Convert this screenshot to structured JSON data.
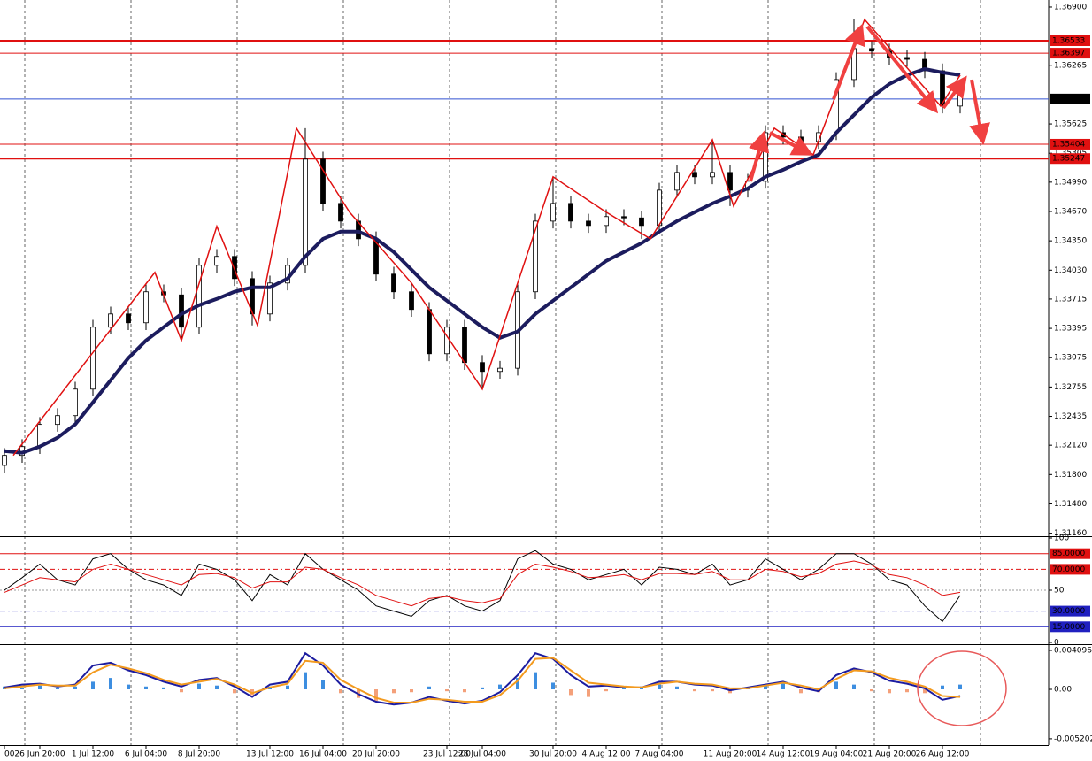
{
  "chart_data": [
    {
      "type": "candlestick",
      "categories": [
        "00",
        null,
        "26 Jun 20:00",
        null,
        null,
        "1 Jul 12:00",
        null,
        null,
        "6 Jul 04:00",
        null,
        null,
        "8 Jul 20:00",
        null,
        null,
        null,
        "13 Jul 12:00",
        null,
        null,
        "16 Jul 04:00",
        null,
        null,
        "20 Jul 20:00",
        null,
        null,
        null,
        "23 Jul 12:00",
        null,
        "28 Jul 04:00",
        null,
        null,
        null,
        "30 Jul 20:00",
        null,
        null,
        "4 Aug 12:00",
        null,
        null,
        "7 Aug 04:00",
        null,
        null,
        null,
        "11 Aug 20:00",
        null,
        null,
        "14 Aug 12:00",
        null,
        null,
        "19 Aug 04:00",
        null,
        null,
        "21 Aug 20:00",
        null,
        null,
        "26 Aug 12:00",
        null
      ],
      "open": [
        1.319,
        1.32009,
        1.32105,
        1.32347,
        1.32443,
        1.32732,
        1.33408,
        1.33552,
        1.33456,
        1.33794,
        1.3376,
        1.33408,
        1.34083,
        1.3418,
        1.33938,
        1.33552,
        1.3389,
        1.34083,
        1.35241,
        1.34758,
        1.34565,
        1.34372,
        1.33987,
        1.33794,
        1.33601,
        1.33118,
        1.33408,
        1.33022,
        1.32925,
        1.3296,
        1.33794,
        1.34565,
        1.34758,
        1.34565,
        1.34517,
        1.34614,
        1.346,
        1.34517,
        1.34903,
        1.35096,
        1.35048,
        1.35096,
        1.34903,
        1.35,
        1.3553,
        1.35482,
        1.35434,
        1.3553,
        1.36109,
        1.36447,
        1.3642,
        1.3635,
        1.3633,
        1.36205,
        1.3582
      ],
      "high": [
        1.32089,
        1.32185,
        1.32427,
        1.32523,
        1.32812,
        1.33488,
        1.33632,
        1.33632,
        1.33874,
        1.33874,
        1.3384,
        1.34163,
        1.3426,
        1.3426,
        1.34018,
        1.3397,
        1.34163,
        1.35578,
        1.35321,
        1.34838,
        1.34645,
        1.34452,
        1.34067,
        1.33874,
        1.33681,
        1.33488,
        1.33488,
        1.33102,
        1.3304,
        1.33874,
        1.34645,
        1.35048,
        1.34838,
        1.34645,
        1.34694,
        1.34694,
        1.3468,
        1.34983,
        1.35176,
        1.35176,
        1.35453,
        1.35176,
        1.3508,
        1.3561,
        1.3561,
        1.35562,
        1.3561,
        1.36189,
        1.36765,
        1.36527,
        1.365,
        1.3643,
        1.3641,
        1.36285,
        1.36044
      ],
      "low": [
        1.3182,
        1.31929,
        1.32025,
        1.32267,
        1.32363,
        1.32652,
        1.33328,
        1.33376,
        1.33376,
        1.3368,
        1.33263,
        1.33328,
        1.34003,
        1.33858,
        1.33427,
        1.33472,
        1.3381,
        1.34003,
        1.34678,
        1.34485,
        1.34292,
        1.33907,
        1.33714,
        1.33521,
        1.33038,
        1.33038,
        1.32942,
        1.32732,
        1.32845,
        1.3288,
        1.33714,
        1.34485,
        1.34485,
        1.34437,
        1.34437,
        1.3452,
        1.34372,
        1.34437,
        1.34823,
        1.34968,
        1.34968,
        1.34729,
        1.34823,
        1.3492,
        1.35402,
        1.35289,
        1.35354,
        1.3545,
        1.36029,
        1.3634,
        1.3627,
        1.3625,
        1.36125,
        1.3574,
        1.3574
      ],
      "close": [
        1.32009,
        1.32105,
        1.32347,
        1.32443,
        1.32732,
        1.33408,
        1.33552,
        1.33456,
        1.33794,
        1.3376,
        1.33408,
        1.34083,
        1.3418,
        1.33938,
        1.33552,
        1.3389,
        1.34083,
        1.35241,
        1.34758,
        1.34565,
        1.34372,
        1.33987,
        1.33794,
        1.33601,
        1.33118,
        1.33408,
        1.33022,
        1.32925,
        1.3296,
        1.33794,
        1.34565,
        1.34758,
        1.34565,
        1.34517,
        1.34614,
        1.346,
        1.34517,
        1.34903,
        1.35096,
        1.35048,
        1.35096,
        1.34903,
        1.35,
        1.3553,
        1.35482,
        1.35434,
        1.3553,
        1.36109,
        1.36447,
        1.3642,
        1.3635,
        1.3633,
        1.36205,
        1.3582,
        1.35964
      ],
      "ma": {
        "color": "#1c1c5e",
        "values": [
          1.32057,
          1.32038,
          1.32105,
          1.32202,
          1.32347,
          1.32588,
          1.32829,
          1.3307,
          1.33263,
          1.33408,
          1.33552,
          1.33649,
          1.33716,
          1.33794,
          1.33842,
          1.33842,
          1.33938,
          1.3418,
          1.34372,
          1.3445,
          1.3445,
          1.34372,
          1.34228,
          1.34035,
          1.33842,
          1.33697,
          1.33552,
          1.33408,
          1.33292,
          1.3336,
          1.33552,
          1.33697,
          1.33842,
          1.33987,
          1.34131,
          1.34228,
          1.34324,
          1.3445,
          1.34565,
          1.34662,
          1.34758,
          1.34836,
          1.34922,
          1.35048,
          1.35125,
          1.35212,
          1.35289,
          1.3553,
          1.35723,
          1.35916,
          1.36061,
          1.36157,
          1.36225,
          1.36186,
          1.36157
        ]
      },
      "zigzag": {
        "color": "#e01010",
        "x": [
          0.5,
          8.5,
          10,
          12,
          14.3,
          16.5,
          19.5,
          23,
          27,
          31,
          34,
          36.5,
          40,
          41.2,
          43.5,
          45.7,
          48.6,
          52.9,
          54
        ],
        "values": [
          1.32009,
          1.34006,
          1.33263,
          1.34508,
          1.33427,
          1.35578,
          1.34662,
          1.3389,
          1.32732,
          1.35048,
          1.34662,
          1.34372,
          1.35453,
          1.34729,
          1.35578,
          1.35289,
          1.36765,
          1.3582,
          1.36157
        ]
      },
      "ylim": [
        1.31137,
        1.36977
      ],
      "yticks": [
        {
          "value": 1.369,
          "label": "1.36900"
        },
        {
          "value": 1.36265,
          "label": "1.36265"
        },
        {
          "value": 1.35625,
          "label": "1.35625"
        },
        {
          "value": 1.35305,
          "label": "1.35305"
        },
        {
          "value": 1.3499,
          "label": "1.34990"
        },
        {
          "value": 1.3467,
          "label": "1.34670"
        },
        {
          "value": 1.3435,
          "label": "1.34350"
        },
        {
          "value": 1.3403,
          "label": "1.34030"
        },
        {
          "value": 1.33715,
          "label": "1.33715"
        },
        {
          "value": 1.33395,
          "label": "1.33395"
        },
        {
          "value": 1.33075,
          "label": "1.33075"
        },
        {
          "value": 1.32755,
          "label": "1.32755"
        },
        {
          "value": 1.32435,
          "label": "1.32435"
        },
        {
          "value": 1.3212,
          "label": "1.32120"
        },
        {
          "value": 1.318,
          "label": "1.31800"
        },
        {
          "value": 1.3148,
          "label": "1.31480"
        },
        {
          "value": 1.3116,
          "label": "1.31160"
        }
      ],
      "hlines": [
        {
          "value": 1.36533,
          "label": "1.36533",
          "color": "#e01010",
          "box_color": "#e01010",
          "width": 2
        },
        {
          "value": 1.36397,
          "label": "1.36397",
          "color": "#e01010",
          "box_color": "#e01010",
          "width": 1
        },
        {
          "value": 1.35897,
          "label": "1.35897",
          "color": "#3050d0",
          "box_color": "#000000",
          "width": 1
        },
        {
          "value": 1.35404,
          "label": "1.35404",
          "color": "#e01010",
          "box_color": "#e01010",
          "width": 1
        },
        {
          "value": 1.35247,
          "label": "1.35247",
          "color": "#e01010",
          "box_color": "#e01010",
          "width": 2
        }
      ]
    },
    {
      "type": "line",
      "series": [
        {
          "color": "#000000",
          "values": [
            50,
            62,
            75,
            60,
            55,
            80,
            85,
            70,
            60,
            55,
            45,
            75,
            70,
            60,
            40,
            65,
            55,
            85,
            70,
            60,
            50,
            35,
            30,
            25,
            40,
            45,
            35,
            30,
            40,
            80,
            88,
            75,
            70,
            60,
            65,
            70,
            55,
            72,
            70,
            65,
            75,
            55,
            60,
            80,
            70,
            60,
            70,
            85,
            85,
            75,
            60,
            55,
            35,
            20,
            45
          ]
        },
        {
          "color": "#e01010",
          "values": [
            48,
            55,
            62,
            60,
            58,
            70,
            75,
            70,
            65,
            60,
            55,
            65,
            66,
            62,
            52,
            58,
            58,
            72,
            70,
            62,
            55,
            45,
            40,
            35,
            42,
            44,
            40,
            38,
            42,
            65,
            75,
            72,
            68,
            62,
            63,
            65,
            60,
            66,
            66,
            65,
            68,
            60,
            60,
            70,
            68,
            63,
            66,
            75,
            78,
            74,
            65,
            62,
            55,
            45,
            48
          ]
        }
      ],
      "ylim": [
        0,
        100
      ],
      "yticks": [
        0,
        50,
        100
      ],
      "hlines": [
        {
          "value": 85,
          "label": "85.0000",
          "color": "#e01010",
          "dash": "",
          "boxed": true
        },
        {
          "value": 70,
          "label": "70.0000",
          "color": "#e01010",
          "dash": "6 3 2 3",
          "boxed": true
        },
        {
          "value": 50,
          "color": "#999999",
          "dash": "2 2",
          "boxed": false
        },
        {
          "value": 30,
          "label": "30.0000",
          "color": "#2020c0",
          "dash": "6 3 2 3",
          "boxed": true
        },
        {
          "value": 15,
          "label": "15.0000",
          "color": "#2020c0",
          "dash": "",
          "boxed": true
        }
      ]
    },
    {
      "type": "macd",
      "histogram": {
        "up_color": "#3d8ee0",
        "down_color": "#f4a07a",
        "values": [
          0.0003,
          0.0002,
          0.0004,
          0.0002,
          0.0003,
          0.0008,
          0.0012,
          0.0005,
          0.0003,
          0.0002,
          -0.0003,
          0.0006,
          0.0004,
          -0.0004,
          -0.0006,
          0.0003,
          0.0004,
          0.0018,
          0.001,
          -0.0004,
          -0.0009,
          -0.0012,
          -0.0004,
          -0.0003,
          0.0003,
          -0.0002,
          -0.0003,
          0.0002,
          0.0005,
          0.0012,
          0.0018,
          0.0007,
          -0.0006,
          -0.0008,
          -0.0002,
          0.0002,
          0.0003,
          0.0005,
          0.0003,
          -0.0002,
          -0.0002,
          -0.0004,
          0.0002,
          0.0004,
          0.0006,
          -0.0004,
          -0.0003,
          0.0008,
          0.0005,
          -0.0002,
          -0.0004,
          -0.0003,
          -0.0004,
          0.0004,
          0.0005
        ]
      },
      "series": [
        {
          "color": "#1c1ca0",
          "values": [
            0.0002,
            0.0005,
            0.0006,
            0.0003,
            0.0005,
            0.0025,
            0.0028,
            0.002,
            0.0015,
            0.0008,
            0.0003,
            0.001,
            0.0012,
            0.0003,
            -0.0008,
            0.0005,
            0.0008,
            0.0038,
            0.0025,
            0.0005,
            -0.0005,
            -0.0013,
            -0.0016,
            -0.0014,
            -0.0008,
            -0.0012,
            -0.0015,
            -0.0012,
            -0.0003,
            0.0015,
            0.0038,
            0.0032,
            0.0015,
            0.0003,
            0.0004,
            0.0002,
            0.0002,
            0.0008,
            0.0008,
            0.0005,
            0.0004,
            -0.0001,
            0.0002,
            0.0005,
            0.0008,
            0.0002,
            -0.0002,
            0.0015,
            0.0022,
            0.0018,
            0.0009,
            0.0006,
            0.0001,
            -0.0011,
            -0.0007
          ]
        },
        {
          "color": "#f39a1e",
          "values": [
            0.0001,
            0.0003,
            0.0005,
            0.0004,
            0.0004,
            0.0018,
            0.0026,
            0.0022,
            0.0017,
            0.001,
            0.0005,
            0.0008,
            0.0011,
            0.0005,
            -0.0004,
            0.0002,
            0.0006,
            0.003,
            0.0028,
            0.001,
            0,
            -0.0009,
            -0.0014,
            -0.0014,
            -0.001,
            -0.0011,
            -0.0013,
            -0.0013,
            -0.0006,
            0.0009,
            0.0032,
            0.0033,
            0.002,
            0.0007,
            0.0005,
            0.0003,
            0.0002,
            0.0006,
            0.0008,
            0.0006,
            0.0005,
            0.0001,
            0.0001,
            0.0004,
            0.0007,
            0.0004,
            0,
            0.0011,
            0.002,
            0.0019,
            0.0012,
            0.0008,
            0.0003,
            -0.0007,
            -0.0008
          ]
        }
      ],
      "ylim": [
        -0.00549,
        0.00456
      ],
      "yticks": [
        {
          "value": 0.0040965,
          "label": "0.0040965"
        },
        {
          "value": 0,
          "label": "0.00"
        },
        {
          "value": -0.005202,
          "label": "-0.005202"
        }
      ]
    }
  ]
}
